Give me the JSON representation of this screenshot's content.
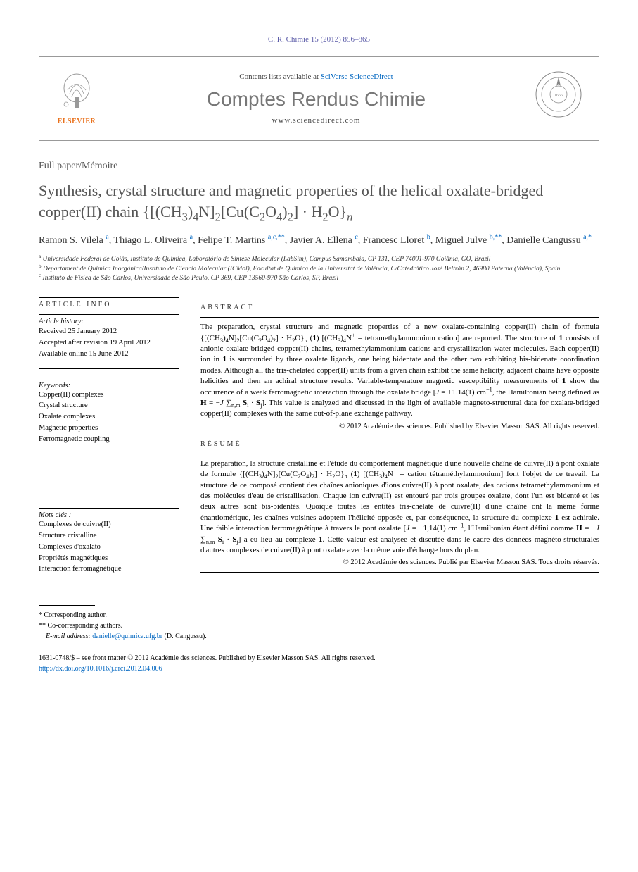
{
  "citation": "C. R. Chimie 15 (2012) 856–865",
  "header": {
    "contents_prefix": "Contents lists available at ",
    "contents_link": "SciVerse ScienceDirect",
    "journal": "Comptes Rendus Chimie",
    "url": "www.sciencedirect.com",
    "publisher": "ELSEVIER"
  },
  "article_type": "Full paper/Mémoire",
  "title_html": "Synthesis, crystal structure and magnetic properties of the helical oxalate-bridged copper(II) chain {[(CH<sub>3</sub>)<sub>4</sub>N]<sub>2</sub>[Cu(C<sub>2</sub>O<sub>4</sub>)<sub>2</sub>] · H<sub>2</sub>O}<sub><i>n</i></sub>",
  "authors_html": "Ramon S. Vilela <sup>a</sup>, Thiago L. Oliveira <sup>a</sup>, Felipe T. Martins <sup>a,c,**</sup>, Javier A. Ellena <sup>c</sup>, Francesc Lloret <sup>b</sup>, Miguel Julve <sup>b,**</sup>, Danielle Cangussu <sup>a,*</sup>",
  "affiliations": [
    "<sup>a</sup> Universidade Federal de Goiás, Instituto de Química, Laboratório de Síntese Molecular (LabSim), Campus Samambaia, CP 131, CEP 74001-970 Goiânia, GO, Brazil",
    "<sup>b</sup> Departament de Química Inorgànica/Instituto de Ciencia Molecular (ICMol), Facultat de Química de la Universitat de València, C/Catedrático José Beltrán 2, 46980 Paterna (València), Spain",
    "<sup>c</sup> Instituto de Física de São Carlos, Universidade de São Paulo, CP 369, CEP 13560-970 São Carlos, SP, Brazil"
  ],
  "article_info_head": "ARTICLE INFO",
  "abstract_head": "ABSTRACT",
  "resume_head": "RÉSUMÉ",
  "history": {
    "label": "Article history:",
    "items": [
      "Received 25 January 2012",
      "Accepted after revision 19 April 2012",
      "Available online 15 June 2012"
    ]
  },
  "keywords_en": {
    "label": "Keywords:",
    "items": [
      "Copper(II) complexes",
      "Crystal structure",
      "Oxalate complexes",
      "Magnetic properties",
      "Ferromagnetic coupling"
    ]
  },
  "keywords_fr": {
    "label": "Mots clés :",
    "items": [
      "Complexes de cuivre(II)",
      "Structure cristalline",
      "Complexes d'oxalato",
      "Propriétés magnétiques",
      "Interaction ferromagnétique"
    ]
  },
  "abstract_html": "The preparation, crystal structure and magnetic properties of a new oxalate-containing copper(II) chain of formula {[(CH<sub>3</sub>)<sub>4</sub>N]<sub>2</sub>[Cu(C<sub>2</sub>O<sub>4</sub>)<sub>2</sub>] · H<sub>2</sub>O}<sub><i>n</i></sub> (<b>1</b>) [(CH<sub>3</sub>)<sub>4</sub>N<sup>+</sup> = tetramethylammonium cation] are reported. The structure of <b>1</b> consists of anionic oxalate-bridged copper(II) chains, tetramethylammonium cations and crystallization water molecules. Each copper(II) ion in <b>1</b> is surrounded by three oxalate ligands, one being bidentate and the other two exhibiting bis-bidenate coordination modes. Although all the tris-chelated copper(II) units from a given chain exhibit the same helicity, adjacent chains have opposite helicities and then an achiral structure results. Variable-temperature magnetic susceptibility measurements of <b>1</b> show the occurrence of a weak ferromagnetic interaction through the oxalate bridge [<i>J</i> = +1.14(1) cm<sup>−1</sup>, the Hamiltonian being defined as <b>H</b> = −<i>J</i> ∑<sub>n,m</sub> <b>S</b><sub>i</sub> · <b>S</b><sub>j</sub>]. This value is analyzed and discussed in the light of available magneto-structural data for oxalate-bridged copper(II) complexes with the same out-of-plane exchange pathway.",
  "abstract_copyright": "© 2012 Académie des sciences. Published by Elsevier Masson SAS. All rights reserved.",
  "resume_html": "La préparation, la structure cristalline et l'étude du comportement magnétique d'une nouvelle chaîne de cuivre(II) à pont oxalate de formule {[(CH<sub>3</sub>)<sub>4</sub>N]<sub>2</sub>[Cu(C<sub>2</sub>O<sub>4</sub>)<sub>2</sub>] · H<sub>2</sub>O}<sub><i>n</i></sub> (<b>1</b>) [(CH<sub>3</sub>)<sub>4</sub>N<sup>+</sup> = cation tétraméthylammonium] font l'objet de ce travail. La structure de ce composé contient des chaînes anioniques d'ions cuivre(II) à pont oxalate, des cations tetramethylammonium et des molécules d'eau de cristallisation. Chaque ion cuivre(II) est entouré par trois groupes oxalate, dont l'un est bidenté et les deux autres sont bis-bidentés. Quoique toutes les entités tris-chélate de cuivre(II) d'une chaîne ont la même forme énantiomérique, les chaînes voisines adoptent l'hélicité opposée et, par conséquence, la structure du complexe <b>1</b> est achirale. Une faible interaction ferromagnétique à travers le pont oxalate [<i>J</i> = +1,14(1) cm<sup>−1</sup>, l'Hamiltonian étant défini comme <b>H</b> = −<i>J</i> ∑<sub>n,m</sub> <b>S</b><sub>i</sub> · <b>S</b><sub>j</sub>] a eu lieu au complexe <b>1</b>. Cette valeur est analysée et discutée dans le cadre des données magnéto-structurales d'autres complexes de cuivre(II) à pont oxalate avec la même voie d'échange hors du plan.",
  "resume_copyright": "© 2012 Académie des sciences. Publié par Elsevier Masson SAS. Tous droits réservés.",
  "footnotes": {
    "corr1": "* Corresponding author.",
    "corr2": "** Co-corresponding authors.",
    "email_label": "E-mail address: ",
    "email": "danielle@quimica.ufg.br",
    "email_person": " (D. Cangussu)."
  },
  "footer": {
    "issn_line": "1631-0748/$ – see front matter © 2012 Académie des sciences. Published by Elsevier Masson SAS. All rights reserved.",
    "doi": "http://dx.doi.org/10.1016/j.crci.2012.04.006"
  }
}
